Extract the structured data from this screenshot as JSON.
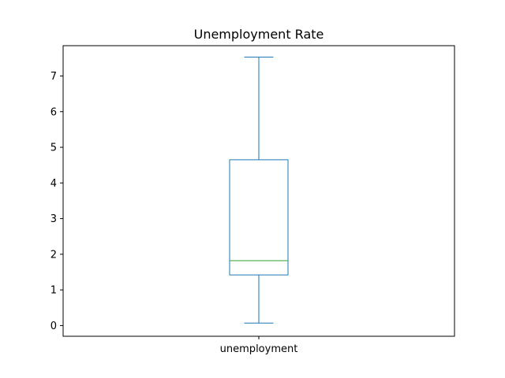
{
  "chart_data": {
    "type": "box",
    "title": "Unemployment Rate",
    "xlabel": "",
    "ylabel": "",
    "categories": [
      "unemployment"
    ],
    "boxes": [
      {
        "category": "unemployment",
        "whisker_low": 0.07,
        "q1": 1.42,
        "median": 1.82,
        "q3": 4.65,
        "whisker_high": 7.53
      }
    ],
    "ylim": [
      -0.3,
      7.85
    ],
    "yticks": [
      0,
      1,
      2,
      3,
      4,
      5,
      6,
      7
    ],
    "grid": false,
    "colors": {
      "box": "#1f77b4",
      "median": "#2ca02c",
      "axes": "#000000"
    }
  }
}
